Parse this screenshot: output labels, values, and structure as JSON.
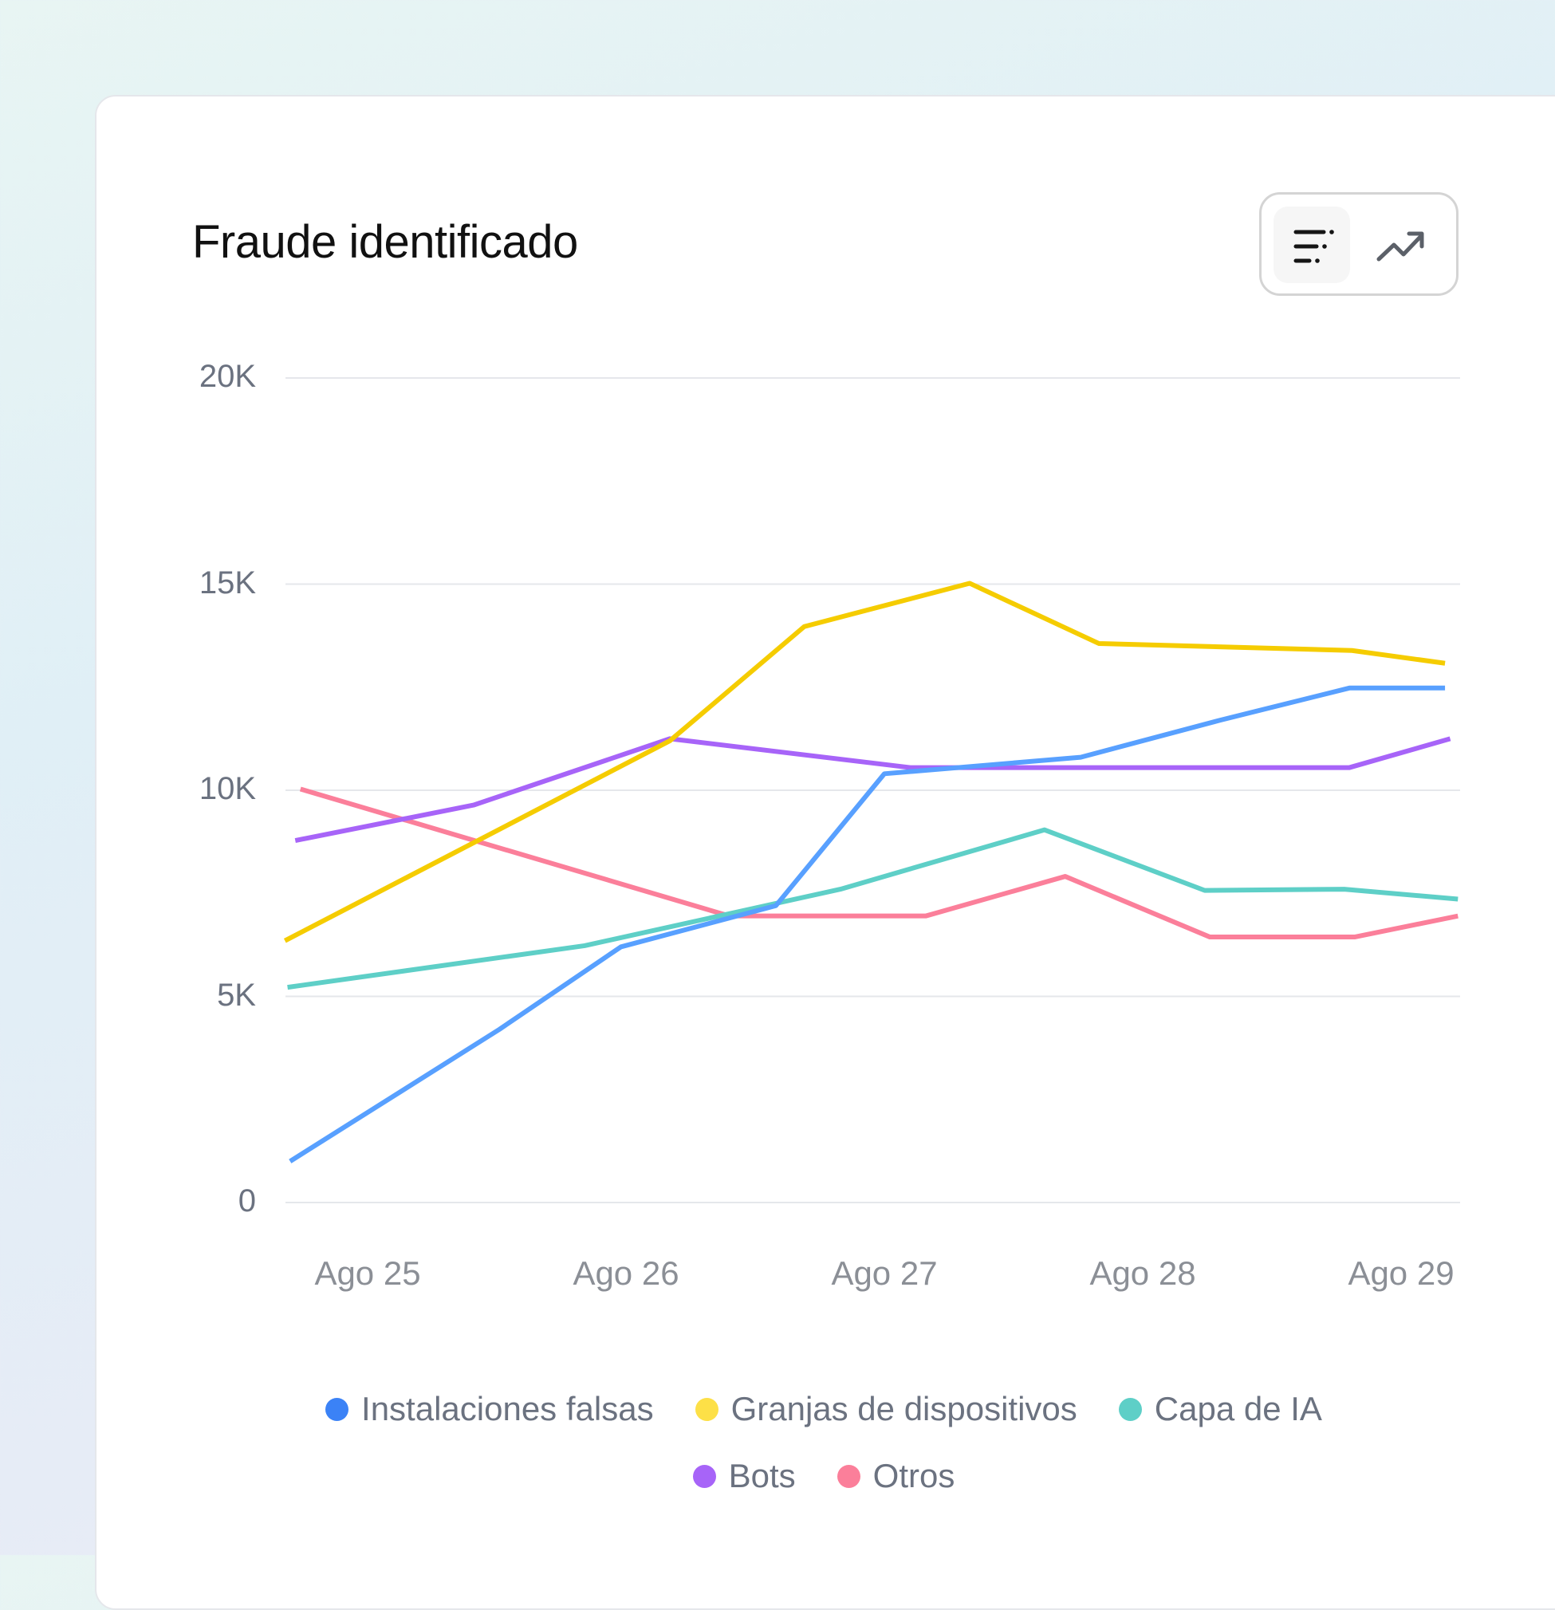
{
  "title": "Fraude identificado",
  "toggle": {
    "icons": [
      "sort-list-icon",
      "trending-up-icon"
    ],
    "active": 0
  },
  "chart_data": {
    "type": "line",
    "title": "Fraude identificado",
    "xlabel": "",
    "ylabel": "",
    "x_tick_labels": [
      "Ago 25",
      "Ago 26",
      "Ago 27",
      "Ago 28",
      "Ago 29"
    ],
    "y_tick_labels": [
      "0",
      "5K",
      "10K",
      "15K",
      "20K"
    ],
    "y_ticks": [
      0,
      5000,
      10000,
      15000,
      20000
    ],
    "ylim": [
      0,
      20000
    ],
    "xlim": [
      24.68,
      29.23
    ],
    "grid": true,
    "legend_position": "bottom-center",
    "series": [
      {
        "name": "Instalaciones falsas",
        "color": "#58a0ff",
        "dot_color": "#3b82f6",
        "x": [
          24.7,
          25.51,
          25.98,
          26.58,
          27.0,
          27.76,
          28.3,
          28.8,
          29.17
        ],
        "values": [
          1000,
          4200,
          6200,
          7200,
          10400,
          10800,
          11700,
          12480,
          12480
        ]
      },
      {
        "name": "Granjas de dispositivos",
        "color": "#f5cc00",
        "dot_color": "#fde047",
        "x": [
          24.68,
          26.17,
          26.69,
          27.33,
          27.83,
          28.81,
          29.17
        ],
        "values": [
          6350,
          11200,
          13970,
          15020,
          13560,
          13390,
          13080
        ]
      },
      {
        "name": "Capa de IA",
        "color": "#5ecfc7",
        "dot_color": "#5ecfc7",
        "x": [
          24.69,
          25.84,
          26.83,
          27.62,
          28.24,
          28.78,
          29.22
        ],
        "values": [
          5220,
          6230,
          7600,
          9040,
          7570,
          7600,
          7360
        ]
      },
      {
        "name": "Bots",
        "color": "#a764f8",
        "dot_color": "#a764f8",
        "x": [
          24.72,
          25.41,
          26.17,
          27.1,
          28.8,
          29.19
        ],
        "values": [
          8780,
          9640,
          11250,
          10550,
          10550,
          11250
        ]
      },
      {
        "name": "Otros",
        "color": "#fb7f9a",
        "dot_color": "#fb7f9a",
        "x": [
          24.74,
          26.4,
          27.16,
          27.7,
          28.26,
          28.82,
          29.22
        ],
        "values": [
          10030,
          6950,
          6950,
          7910,
          6440,
          6440,
          6950
        ]
      }
    ]
  }
}
